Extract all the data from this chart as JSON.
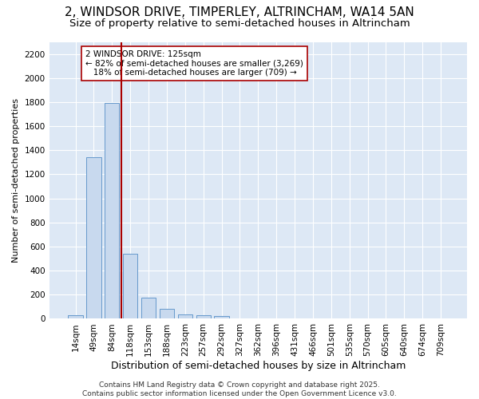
{
  "title": "2, WINDSOR DRIVE, TIMPERLEY, ALTRINCHAM, WA14 5AN",
  "subtitle": "Size of property relative to semi-detached houses in Altrincham",
  "xlabel": "Distribution of semi-detached houses by size in Altrincham",
  "ylabel": "Number of semi-detached properties",
  "categories": [
    "14sqm",
    "49sqm",
    "84sqm",
    "118sqm",
    "153sqm",
    "188sqm",
    "223sqm",
    "257sqm",
    "292sqm",
    "327sqm",
    "362sqm",
    "396sqm",
    "431sqm",
    "466sqm",
    "501sqm",
    "535sqm",
    "570sqm",
    "605sqm",
    "640sqm",
    "674sqm",
    "709sqm"
  ],
  "values": [
    30,
    1340,
    1790,
    540,
    175,
    82,
    37,
    28,
    20,
    0,
    0,
    0,
    0,
    0,
    0,
    0,
    0,
    0,
    0,
    0,
    0
  ],
  "bar_color": "#c8d9ee",
  "bar_edge_color": "#6699cc",
  "vline_color": "#aa0000",
  "vline_x_index": 2.5,
  "annotation_text": "2 WINDSOR DRIVE: 125sqm\n← 82% of semi-detached houses are smaller (3,269)\n   18% of semi-detached houses are larger (709) →",
  "annotation_box_color": "white",
  "annotation_box_edge_color": "#aa0000",
  "ylim_max": 2300,
  "yticks": [
    0,
    200,
    400,
    600,
    800,
    1000,
    1200,
    1400,
    1600,
    1800,
    2000,
    2200
  ],
  "background_color": "#ffffff",
  "plot_background_color": "#dde8f5",
  "grid_color": "#ffffff",
  "footer": "Contains HM Land Registry data © Crown copyright and database right 2025.\nContains public sector information licensed under the Open Government Licence v3.0.",
  "title_fontsize": 11,
  "subtitle_fontsize": 9.5,
  "xlabel_fontsize": 9,
  "ylabel_fontsize": 8,
  "tick_fontsize": 7.5,
  "footer_fontsize": 6.5,
  "annot_fontsize": 7.5
}
